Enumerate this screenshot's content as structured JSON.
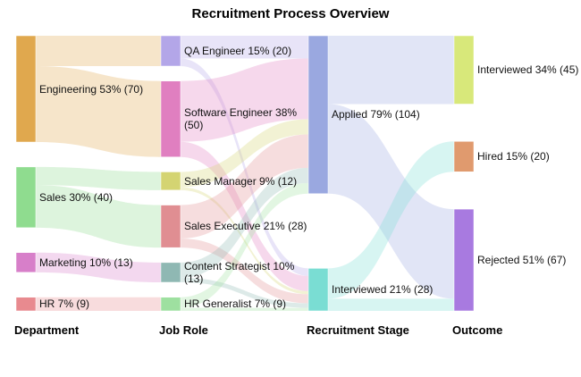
{
  "chart_data": {
    "type": "sankey",
    "title": "Recruitment Process Overview",
    "columns": [
      "Department",
      "Job Role",
      "Recruitment Stage",
      "Outcome"
    ],
    "nodes": [
      {
        "label": "Engineering 53% (70)",
        "column": 0,
        "color": "#e0a84e"
      },
      {
        "label": "Sales 30% (40)",
        "column": 0,
        "color": "#8fdc8f"
      },
      {
        "label": "Marketing 10% (13)",
        "column": 0,
        "color": "#d77fc9"
      },
      {
        "label": "HR 7% (9)",
        "column": 0,
        "color": "#e88a8f"
      },
      {
        "label": "QA Engineer 15% (20)",
        "column": 1,
        "color": "#b3a6e8"
      },
      {
        "label": "Software Engineer 38% (50)",
        "column": 1,
        "color": "#e07fc0"
      },
      {
        "label": "Sales Manager 9% (12)",
        "column": 1,
        "color": "#d4d472"
      },
      {
        "label": "Sales Executive 21% (28)",
        "column": 1,
        "color": "#e08e92"
      },
      {
        "label": "Content Strategist 10% (13)",
        "column": 1,
        "color": "#8fb8b3"
      },
      {
        "label": "HR Generalist 7% (9)",
        "column": 1,
        "color": "#9ee0a0"
      },
      {
        "label": "Applied 79% (104)",
        "column": 2,
        "color": "#9aa8e0"
      },
      {
        "label": "Interviewed 21% (28)",
        "column": 2,
        "color": "#7addd3"
      },
      {
        "label": "Interviewed 34% (45)",
        "column": 3,
        "color": "#d8e87a"
      },
      {
        "label": "Hired 15% (20)",
        "column": 3,
        "color": "#e09a6e"
      },
      {
        "label": "Rejected 51% (67)",
        "column": 3,
        "color": "#a87ae0"
      }
    ],
    "links": [
      {
        "source": 0,
        "target": 4,
        "value": 20
      },
      {
        "source": 0,
        "target": 5,
        "value": 50
      },
      {
        "source": 1,
        "target": 6,
        "value": 12
      },
      {
        "source": 1,
        "target": 7,
        "value": 28
      },
      {
        "source": 2,
        "target": 8,
        "value": 13
      },
      {
        "source": 3,
        "target": 9,
        "value": 9
      },
      {
        "source": 4,
        "target": 10,
        "value": 15
      },
      {
        "source": 4,
        "target": 11,
        "value": 5
      },
      {
        "source": 5,
        "target": 10,
        "value": 40
      },
      {
        "source": 5,
        "target": 11,
        "value": 10
      },
      {
        "source": 6,
        "target": 10,
        "value": 10
      },
      {
        "source": 6,
        "target": 11,
        "value": 2
      },
      {
        "source": 7,
        "target": 10,
        "value": 22
      },
      {
        "source": 7,
        "target": 11,
        "value": 6
      },
      {
        "source": 8,
        "target": 10,
        "value": 10
      },
      {
        "source": 8,
        "target": 11,
        "value": 3
      },
      {
        "source": 9,
        "target": 10,
        "value": 7
      },
      {
        "source": 9,
        "target": 11,
        "value": 2
      },
      {
        "source": 10,
        "target": 12,
        "value": 45
      },
      {
        "source": 10,
        "target": 14,
        "value": 59
      },
      {
        "source": 11,
        "target": 13,
        "value": 20
      },
      {
        "source": 11,
        "target": 14,
        "value": 8
      }
    ]
  }
}
